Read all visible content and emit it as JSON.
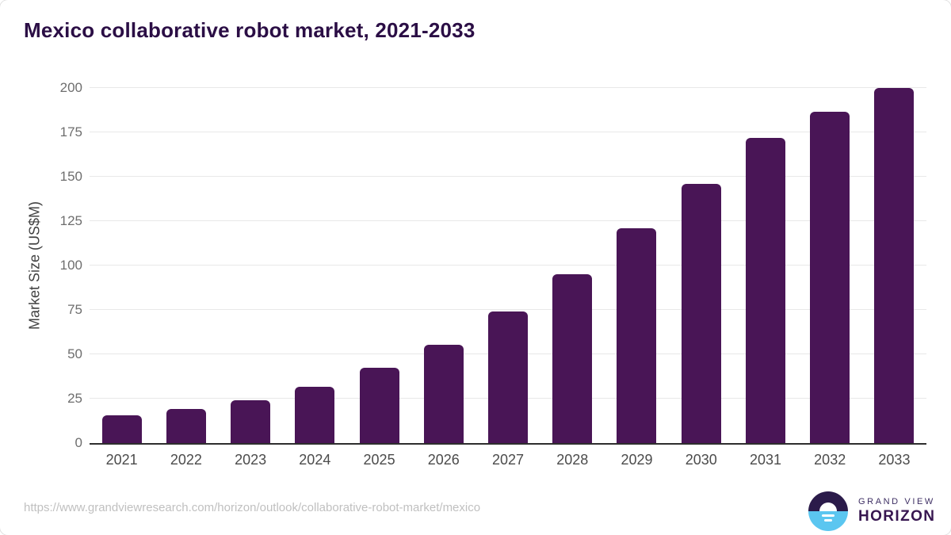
{
  "chart_data": {
    "type": "bar",
    "title": "Mexico collaborative robot market, 2021-2033",
    "xlabel": "",
    "ylabel": "Market Size (US$M)",
    "categories": [
      "2021",
      "2022",
      "2023",
      "2024",
      "2025",
      "2026",
      "2027",
      "2028",
      "2029",
      "2030",
      "2031",
      "2032",
      "2033"
    ],
    "values": [
      15.5,
      19,
      24,
      31.5,
      42.5,
      55.5,
      74,
      95,
      121,
      146,
      172,
      186.5,
      200
    ],
    "ylim": [
      0,
      200
    ],
    "yticks": [
      0,
      25,
      50,
      75,
      100,
      125,
      150,
      175,
      200
    ],
    "grid": true,
    "legend": false
  },
  "footer": {
    "source_url": "https://www.grandviewresearch.com/horizon/outlook/collaborative-robot-market/mexico",
    "logo": {
      "line1": "GRAND VIEW",
      "line2": "HORIZON"
    }
  },
  "colors": {
    "bar": "#491556",
    "title": "#2b0e45",
    "gridline": "#e8e8e8",
    "axis_line": "#2e2e2e",
    "logo_dark": "#2b1b4a",
    "logo_blue": "#5bc6f0"
  }
}
